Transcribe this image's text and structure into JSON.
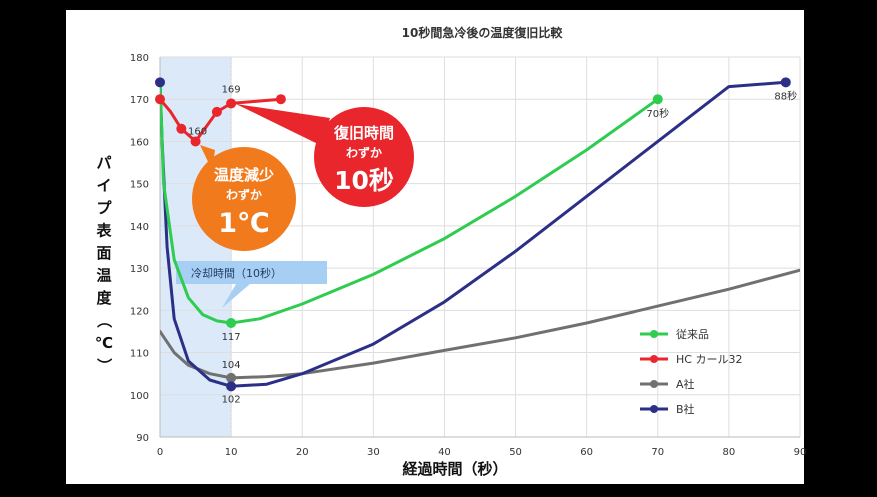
{
  "chart_data": {
    "type": "line",
    "title": "10秒間急冷後の温度復旧比較",
    "xlabel": "経過時間（秒）",
    "ylabel": "パイプ表面温度（℃）",
    "xlim": [
      0,
      90
    ],
    "ylim": [
      90,
      180
    ],
    "x_ticks": [
      0,
      10,
      20,
      30,
      40,
      50,
      60,
      70,
      80,
      90
    ],
    "y_ticks": [
      90,
      100,
      110,
      120,
      130,
      140,
      150,
      160,
      170,
      180
    ],
    "grid": true,
    "legend_position": "bottom-right",
    "series": [
      {
        "name": "従来品",
        "color": "#2ecc4f",
        "points": [
          [
            0,
            174
          ],
          [
            0.5,
            150
          ],
          [
            2,
            132
          ],
          [
            4,
            123
          ],
          [
            6,
            119
          ],
          [
            8,
            117.5
          ],
          [
            10,
            117
          ],
          [
            14,
            118
          ],
          [
            20,
            121.5
          ],
          [
            30,
            128.5
          ],
          [
            40,
            137
          ],
          [
            50,
            147
          ],
          [
            60,
            158
          ],
          [
            70,
            170
          ]
        ],
        "markers": [
          [
            10,
            117
          ],
          [
            70,
            170
          ]
        ]
      },
      {
        "name": "HC カール32",
        "color": "#e8262b",
        "points": [
          [
            0,
            170
          ],
          [
            1.5,
            167
          ],
          [
            3,
            163
          ],
          [
            5,
            160
          ],
          [
            8,
            167
          ],
          [
            10,
            169
          ],
          [
            17,
            170
          ]
        ],
        "markers": [
          [
            0,
            170
          ],
          [
            3,
            163
          ],
          [
            5,
            160
          ],
          [
            8,
            167
          ],
          [
            10,
            169
          ],
          [
            17,
            170
          ]
        ]
      },
      {
        "name": "A社",
        "color": "#707070",
        "points": [
          [
            0,
            115
          ],
          [
            2,
            110
          ],
          [
            4,
            107
          ],
          [
            7,
            105
          ],
          [
            10,
            104
          ],
          [
            15,
            104.3
          ],
          [
            20,
            105
          ],
          [
            30,
            107.5
          ],
          [
            40,
            110.5
          ],
          [
            50,
            113.5
          ],
          [
            60,
            117
          ],
          [
            70,
            121
          ],
          [
            80,
            125
          ],
          [
            90,
            129.5
          ]
        ],
        "markers": [
          [
            10,
            104
          ]
        ]
      },
      {
        "name": "B社",
        "color": "#2b2f86",
        "points": [
          [
            0,
            174
          ],
          [
            0.3,
            160
          ],
          [
            1,
            135
          ],
          [
            2,
            118
          ],
          [
            4,
            108
          ],
          [
            7,
            103.5
          ],
          [
            10,
            102
          ],
          [
            15,
            102.5
          ],
          [
            20,
            105
          ],
          [
            30,
            112
          ],
          [
            40,
            122
          ],
          [
            50,
            134
          ],
          [
            60,
            147
          ],
          [
            70,
            160
          ],
          [
            80,
            173
          ],
          [
            88,
            174
          ]
        ],
        "markers": [
          [
            0,
            174
          ],
          [
            10,
            102
          ],
          [
            88,
            174
          ]
        ]
      }
    ],
    "data_labels": [
      {
        "text": "169",
        "x": 10,
        "y": 169
      },
      {
        "text": "160",
        "x": 5,
        "y": 160
      },
      {
        "text": "117",
        "x": 10,
        "y": 117
      },
      {
        "text": "104",
        "x": 10,
        "y": 104
      },
      {
        "text": "102",
        "x": 10,
        "y": 102
      },
      {
        "text": "70秒",
        "x": 70,
        "y": 170
      },
      {
        "text": "88秒",
        "x": 88,
        "y": 174
      }
    ],
    "annotations": {
      "cooling_period": {
        "label": "冷却時間（10秒）",
        "x_start": 0,
        "x_end": 10
      },
      "orange_bubble": {
        "line1": "温度減少",
        "line2": "わずか",
        "line3": "1℃",
        "color": "#f07a1c"
      },
      "red_bubble": {
        "line1": "復旧時間",
        "line2": "わずか",
        "line3": "10秒",
        "color": "#e8262b"
      }
    }
  }
}
